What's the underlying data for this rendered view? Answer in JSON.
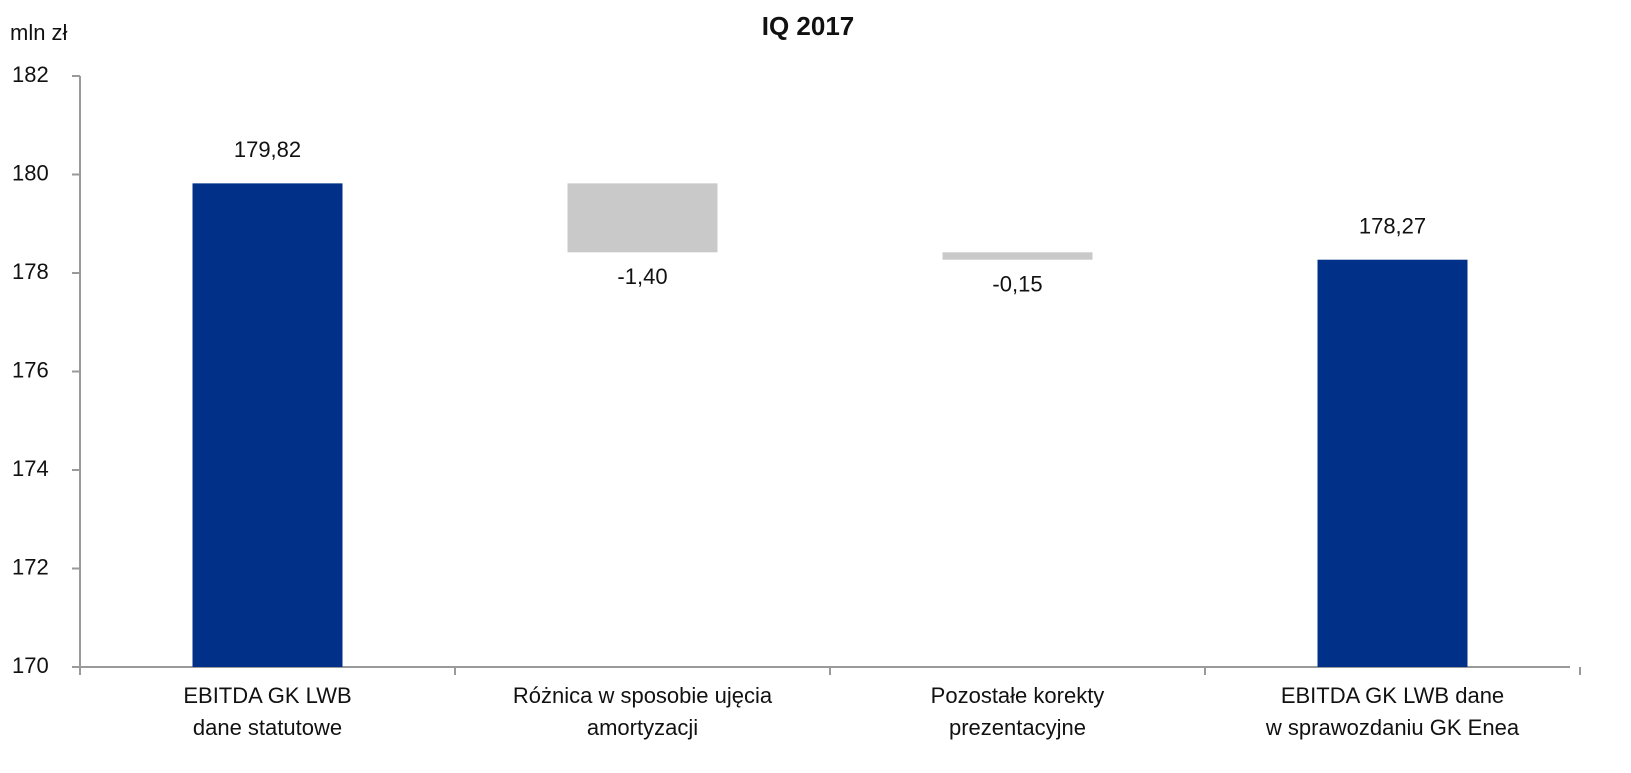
{
  "chart_data": {
    "type": "waterfall",
    "title": "IQ 2017",
    "y_label": "mln zł",
    "categories": [
      [
        "EBITDA GK LWB",
        "dane statutowe"
      ],
      [
        "Różnica w sposobie ujęcia",
        "amortyzacji"
      ],
      [
        "Pozostałe korekty",
        "prezentacyjne"
      ],
      [
        "EBITDA GK LWB dane",
        "w sprawozdaniu GK Enea"
      ]
    ],
    "measures": [
      "absolute",
      "relative",
      "relative",
      "total"
    ],
    "values": [
      179.82,
      -1.4,
      -0.15,
      178.27
    ],
    "value_labels": [
      "179,82",
      "-1,40",
      "-0,15",
      "178,27"
    ],
    "total_color": "#003087",
    "delta_color": "#c8c9c8",
    "ylim": [
      170,
      182
    ],
    "yticks": [
      170,
      172,
      174,
      176,
      178,
      180,
      182
    ],
    "grid": false
  }
}
